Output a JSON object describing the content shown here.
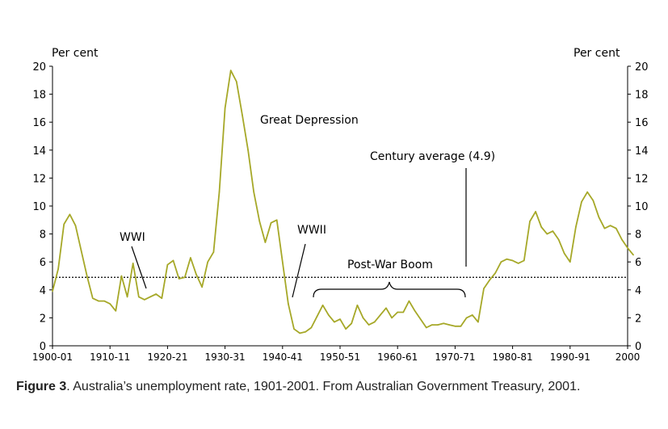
{
  "chart_data": {
    "type": "line",
    "ylabel_left": "Per cent",
    "ylabel_right": "Per cent",
    "ylim": [
      0,
      20
    ],
    "y_ticks": [
      "0",
      "2",
      "4",
      "6",
      "8",
      "10",
      "12",
      "14",
      "16",
      "18",
      "20"
    ],
    "xlim": [
      1900,
      2000
    ],
    "x_ticks": [
      {
        "year": 1900,
        "label": "1900-01"
      },
      {
        "year": 1910,
        "label": "1910-11"
      },
      {
        "year": 1920,
        "label": "1920-21"
      },
      {
        "year": 1930,
        "label": "1930-31"
      },
      {
        "year": 1940,
        "label": "1940-41"
      },
      {
        "year": 1950,
        "label": "1950-51"
      },
      {
        "year": 1960,
        "label": "1960-61"
      },
      {
        "year": 1970,
        "label": "1970-71"
      },
      {
        "year": 1980,
        "label": "1980-81"
      },
      {
        "year": 1990,
        "label": "1990-91"
      },
      {
        "year": 2000,
        "label": "2000"
      }
    ],
    "series": [
      {
        "color": "#a6a828",
        "points": [
          [
            1900,
            3.9
          ],
          [
            1901,
            5.5
          ],
          [
            1902,
            8.7
          ],
          [
            1903,
            9.4
          ],
          [
            1904,
            8.6
          ],
          [
            1905,
            6.8
          ],
          [
            1906,
            5.0
          ],
          [
            1907,
            3.4
          ],
          [
            1908,
            3.2
          ],
          [
            1909,
            3.2
          ],
          [
            1910,
            3.0
          ],
          [
            1911,
            2.5
          ],
          [
            1912,
            5.0
          ],
          [
            1913,
            3.5
          ],
          [
            1914,
            5.9
          ],
          [
            1915,
            3.5
          ],
          [
            1916,
            3.3
          ],
          [
            1917,
            3.5
          ],
          [
            1918,
            3.7
          ],
          [
            1919,
            3.4
          ],
          [
            1920,
            5.8
          ],
          [
            1921,
            6.1
          ],
          [
            1922,
            4.8
          ],
          [
            1923,
            4.9
          ],
          [
            1924,
            6.3
          ],
          [
            1925,
            5.1
          ],
          [
            1926,
            4.2
          ],
          [
            1927,
            6.0
          ],
          [
            1928,
            6.7
          ],
          [
            1929,
            11.0
          ],
          [
            1930,
            17.0
          ],
          [
            1931,
            19.7
          ],
          [
            1932,
            18.9
          ],
          [
            1933,
            16.5
          ],
          [
            1934,
            14.0
          ],
          [
            1935,
            11.0
          ],
          [
            1936,
            8.9
          ],
          [
            1937,
            7.4
          ],
          [
            1938,
            8.8
          ],
          [
            1939,
            9.0
          ],
          [
            1940,
            6.0
          ],
          [
            1941,
            3.0
          ],
          [
            1942,
            1.2
          ],
          [
            1943,
            0.9
          ],
          [
            1944,
            1.0
          ],
          [
            1945,
            1.3
          ],
          [
            1946,
            2.1
          ],
          [
            1947,
            2.9
          ],
          [
            1948,
            2.2
          ],
          [
            1949,
            1.7
          ],
          [
            1950,
            1.9
          ],
          [
            1951,
            1.2
          ],
          [
            1952,
            1.6
          ],
          [
            1953,
            2.9
          ],
          [
            1954,
            2.0
          ],
          [
            1955,
            1.5
          ],
          [
            1956,
            1.7
          ],
          [
            1957,
            2.2
          ],
          [
            1958,
            2.7
          ],
          [
            1959,
            2.0
          ],
          [
            1960,
            2.4
          ],
          [
            1961,
            2.4
          ],
          [
            1962,
            3.2
          ],
          [
            1963,
            2.5
          ],
          [
            1964,
            1.9
          ],
          [
            1965,
            1.3
          ],
          [
            1966,
            1.5
          ],
          [
            1967,
            1.5
          ],
          [
            1968,
            1.6
          ],
          [
            1969,
            1.5
          ],
          [
            1970,
            1.4
          ],
          [
            1971,
            1.4
          ],
          [
            1972,
            2.0
          ],
          [
            1973,
            2.2
          ],
          [
            1974,
            1.7
          ],
          [
            1975,
            4.1
          ],
          [
            1976,
            4.7
          ],
          [
            1977,
            5.2
          ],
          [
            1978,
            6.0
          ],
          [
            1979,
            6.2
          ],
          [
            1980,
            6.1
          ],
          [
            1981,
            5.9
          ],
          [
            1982,
            6.1
          ],
          [
            1983,
            8.9
          ],
          [
            1984,
            9.6
          ],
          [
            1985,
            8.5
          ],
          [
            1986,
            8.0
          ],
          [
            1987,
            8.2
          ],
          [
            1988,
            7.6
          ],
          [
            1989,
            6.6
          ],
          [
            1990,
            6.0
          ],
          [
            1991,
            8.5
          ],
          [
            1992,
            10.3
          ],
          [
            1993,
            11.0
          ],
          [
            1994,
            10.4
          ],
          [
            1995,
            9.2
          ],
          [
            1996,
            8.4
          ],
          [
            1997,
            8.6
          ],
          [
            1998,
            8.4
          ],
          [
            1999,
            7.6
          ],
          [
            2000,
            7.0
          ],
          [
            2001,
            6.5
          ]
        ]
      }
    ],
    "reference_line": {
      "value": 4.9,
      "style": "dotted"
    },
    "annotations": {
      "great_depression": "Great Depression",
      "century_average": "Century average (4.9)",
      "wwi": "WWI",
      "wwii": "WWII",
      "post_war_boom": "Post-War Boom"
    },
    "grid": false
  },
  "caption": {
    "label": "Figure 3",
    "text": ". Australia’s unemployment rate, 1901-2001. From Australian Government Treasury, 2001."
  }
}
